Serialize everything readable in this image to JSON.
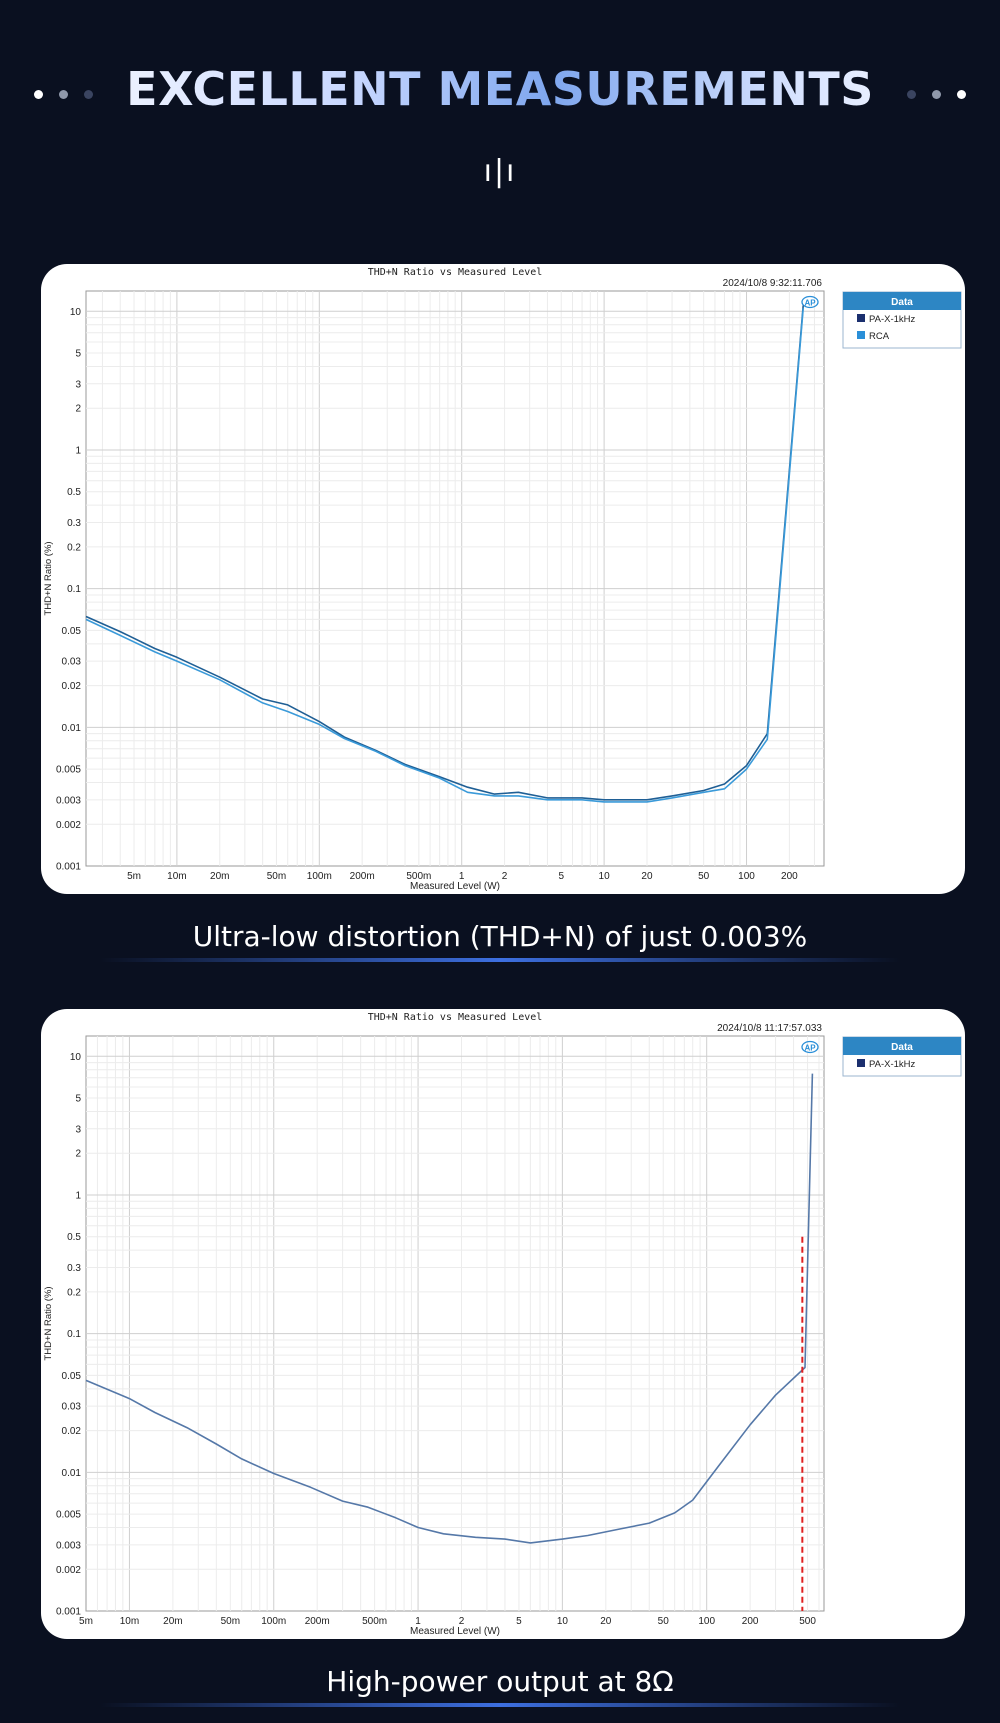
{
  "header": {
    "title": "EXCELLENT MEASUREMENTS",
    "mark": "ı|ı",
    "dot_colors_left": [
      "#ffffff",
      "#8f98aa",
      "#3a4460"
    ],
    "dot_colors_right": [
      "#3a4460",
      "#8f98aa",
      "#ffffff"
    ]
  },
  "captions": {
    "first": "Ultra-low distortion (THD+N) of just 0.003%",
    "second": "High-power output at 8Ω"
  },
  "chart_data": [
    {
      "type": "line",
      "title": "THD+N Ratio vs Measured Level",
      "timestamp": "2024/10/8 9:32:11.706",
      "xlabel": "Measured Level (W)",
      "ylabel": "THD+N Ratio (%)",
      "xscale": "log",
      "yscale": "log",
      "xlim": [
        0.0023,
        350
      ],
      "ylim": [
        0.001,
        14
      ],
      "x_ticks": [
        {
          "v": 0.005,
          "label": "5m"
        },
        {
          "v": 0.01,
          "label": "10m"
        },
        {
          "v": 0.02,
          "label": "20m"
        },
        {
          "v": 0.05,
          "label": "50m"
        },
        {
          "v": 0.1,
          "label": "100m"
        },
        {
          "v": 0.2,
          "label": "200m"
        },
        {
          "v": 0.5,
          "label": "500m"
        },
        {
          "v": 1,
          "label": "1"
        },
        {
          "v": 2,
          "label": "2"
        },
        {
          "v": 5,
          "label": "5"
        },
        {
          "v": 10,
          "label": "10"
        },
        {
          "v": 20,
          "label": "20"
        },
        {
          "v": 50,
          "label": "50"
        },
        {
          "v": 100,
          "label": "100"
        },
        {
          "v": 200,
          "label": "200"
        }
      ],
      "y_ticks": [
        {
          "v": 10,
          "label": "10"
        },
        {
          "v": 5,
          "label": "5"
        },
        {
          "v": 3,
          "label": "3"
        },
        {
          "v": 2,
          "label": "2"
        },
        {
          "v": 1,
          "label": "1"
        },
        {
          "v": 0.5,
          "label": "0.5"
        },
        {
          "v": 0.3,
          "label": "0.3"
        },
        {
          "v": 0.2,
          "label": "0.2"
        },
        {
          "v": 0.1,
          "label": "0.1"
        },
        {
          "v": 0.05,
          "label": "0.05"
        },
        {
          "v": 0.03,
          "label": "0.03"
        },
        {
          "v": 0.02,
          "label": "0.02"
        },
        {
          "v": 0.01,
          "label": "0.01"
        },
        {
          "v": 0.005,
          "label": "0.005"
        },
        {
          "v": 0.003,
          "label": "0.003"
        },
        {
          "v": 0.002,
          "label": "0.002"
        },
        {
          "v": 0.001,
          "label": "0.001"
        }
      ],
      "legend_title": "Data",
      "legend_position": "outside-right",
      "series": [
        {
          "name": "PA-X-1kHz",
          "color": "#1f5f95",
          "swatch": "#1b2f6e",
          "x": [
            0.0023,
            0.004,
            0.007,
            0.01,
            0.02,
            0.04,
            0.06,
            0.1,
            0.15,
            0.25,
            0.4,
            0.7,
            1.1,
            1.7,
            2.5,
            4,
            7,
            10,
            15,
            20,
            30,
            50,
            70,
            100,
            140,
            250
          ],
          "y": [
            0.063,
            0.049,
            0.037,
            0.032,
            0.023,
            0.016,
            0.0145,
            0.011,
            0.0085,
            0.0068,
            0.0054,
            0.0044,
            0.0037,
            0.0033,
            0.0034,
            0.0031,
            0.0031,
            0.003,
            0.003,
            0.003,
            0.0032,
            0.0035,
            0.0039,
            0.0053,
            0.009,
            11
          ]
        },
        {
          "name": "RCA",
          "color": "#3a9ad9",
          "swatch": "#2a8fd8",
          "x": [
            0.0023,
            0.004,
            0.007,
            0.01,
            0.02,
            0.04,
            0.06,
            0.1,
            0.15,
            0.25,
            0.4,
            0.7,
            1.1,
            1.7,
            2.5,
            4,
            7,
            10,
            15,
            20,
            30,
            50,
            70,
            100,
            140,
            250
          ],
          "y": [
            0.06,
            0.046,
            0.035,
            0.03,
            0.022,
            0.015,
            0.013,
            0.0105,
            0.0083,
            0.0067,
            0.0053,
            0.0043,
            0.0034,
            0.0032,
            0.0032,
            0.003,
            0.003,
            0.0029,
            0.0029,
            0.0029,
            0.0031,
            0.0034,
            0.0036,
            0.005,
            0.0082,
            10.5
          ]
        }
      ]
    },
    {
      "type": "line",
      "title": "THD+N Ratio vs Measured Level",
      "timestamp": "2024/10/8 11:17:57.033",
      "xlabel": "Measured Level (W)",
      "ylabel": "THD+N Ratio (%)",
      "xscale": "log",
      "yscale": "log",
      "xlim": [
        0.005,
        650
      ],
      "ylim": [
        0.001,
        14
      ],
      "x_ticks": [
        {
          "v": 0.005,
          "label": "5m"
        },
        {
          "v": 0.01,
          "label": "10m"
        },
        {
          "v": 0.02,
          "label": "20m"
        },
        {
          "v": 0.05,
          "label": "50m"
        },
        {
          "v": 0.1,
          "label": "100m"
        },
        {
          "v": 0.2,
          "label": "200m"
        },
        {
          "v": 0.5,
          "label": "500m"
        },
        {
          "v": 1,
          "label": "1"
        },
        {
          "v": 2,
          "label": "2"
        },
        {
          "v": 5,
          "label": "5"
        },
        {
          "v": 10,
          "label": "10"
        },
        {
          "v": 20,
          "label": "20"
        },
        {
          "v": 50,
          "label": "50"
        },
        {
          "v": 100,
          "label": "100"
        },
        {
          "v": 200,
          "label": "200"
        },
        {
          "v": 500,
          "label": "500"
        }
      ],
      "y_ticks": [
        {
          "v": 10,
          "label": "10"
        },
        {
          "v": 5,
          "label": "5"
        },
        {
          "v": 3,
          "label": "3"
        },
        {
          "v": 2,
          "label": "2"
        },
        {
          "v": 1,
          "label": "1"
        },
        {
          "v": 0.5,
          "label": "0.5"
        },
        {
          "v": 0.3,
          "label": "0.3"
        },
        {
          "v": 0.2,
          "label": "0.2"
        },
        {
          "v": 0.1,
          "label": "0.1"
        },
        {
          "v": 0.05,
          "label": "0.05"
        },
        {
          "v": 0.03,
          "label": "0.03"
        },
        {
          "v": 0.02,
          "label": "0.02"
        },
        {
          "v": 0.01,
          "label": "0.01"
        },
        {
          "v": 0.005,
          "label": "0.005"
        },
        {
          "v": 0.003,
          "label": "0.003"
        },
        {
          "v": 0.002,
          "label": "0.002"
        },
        {
          "v": 0.001,
          "label": "0.001"
        }
      ],
      "legend_title": "Data",
      "legend_position": "outside-right",
      "series": [
        {
          "name": "PA-X-1kHz",
          "color": "#5578a8",
          "swatch": "#1b2f6e",
          "x": [
            0.005,
            0.01,
            0.015,
            0.025,
            0.04,
            0.06,
            0.1,
            0.18,
            0.3,
            0.45,
            0.7,
            1,
            1.5,
            2.5,
            4,
            6,
            10,
            15,
            25,
            40,
            60,
            80,
            120,
            200,
            300,
            480,
            540
          ],
          "y": [
            0.046,
            0.034,
            0.027,
            0.021,
            0.016,
            0.0125,
            0.0098,
            0.0078,
            0.0062,
            0.0056,
            0.0047,
            0.004,
            0.0036,
            0.0034,
            0.0033,
            0.0031,
            0.0033,
            0.0035,
            0.0039,
            0.0043,
            0.0051,
            0.0063,
            0.011,
            0.022,
            0.036,
            0.057,
            7.5
          ]
        }
      ],
      "marker": {
        "type": "vertical-dashed",
        "color": "#e02020",
        "x": 460,
        "y_top": 0.5
      }
    }
  ]
}
